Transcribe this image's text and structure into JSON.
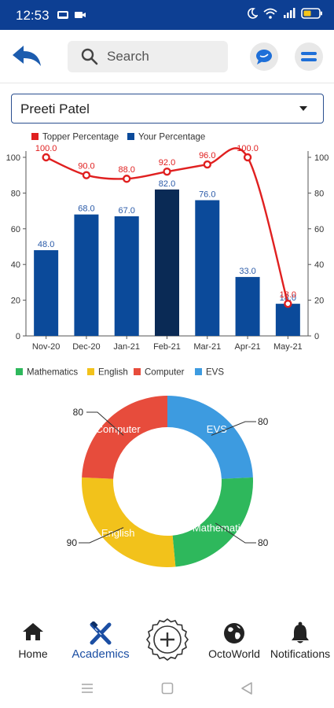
{
  "status_bar": {
    "time": "12:53"
  },
  "header": {
    "search_placeholder": "Search"
  },
  "student_select": {
    "value": "Preeti Patel"
  },
  "chart_data": {
    "type": "bar+line",
    "categories": [
      "Nov-20",
      "Dec-20",
      "Jan-21",
      "Feb-21",
      "Mar-21",
      "Apr-21",
      "May-21"
    ],
    "series": [
      {
        "name": "Topper Percentage",
        "type": "line",
        "color": "#e02020",
        "values": [
          100.0,
          90.0,
          88.0,
          92.0,
          96.0,
          100.0,
          18.0
        ]
      },
      {
        "name": "Your Percentage",
        "type": "bar",
        "color": "#0b4a9a",
        "highlight_color": "#0a2a55",
        "highlight_index": 3,
        "values": [
          48.0,
          68.0,
          67.0,
          82.0,
          76.0,
          33.0,
          18.0
        ]
      }
    ],
    "ylim": [
      0,
      100
    ],
    "yticks": [
      0,
      20,
      40,
      60,
      80,
      100
    ],
    "grid": false,
    "legend": "top"
  },
  "donut_chart": {
    "type": "pie",
    "legend": [
      {
        "label": "Mathematics",
        "color": "#2eb85c"
      },
      {
        "label": "English",
        "color": "#f2c21b"
      },
      {
        "label": "Computer",
        "color": "#e74c3c"
      },
      {
        "label": "EVS",
        "color": "#3d9be0"
      }
    ],
    "slices": [
      {
        "label": "EVS",
        "value": 80,
        "color": "#3d9be0"
      },
      {
        "label": "Mathematics",
        "value": 80,
        "color": "#2eb85c"
      },
      {
        "label": "English",
        "value": 90,
        "color": "#f2c21b"
      },
      {
        "label": "Computer",
        "value": 80,
        "color": "#e74c3c"
      }
    ]
  },
  "bottom_nav": {
    "items": [
      {
        "label": "Home",
        "icon": "home-icon"
      },
      {
        "label": "Academics",
        "icon": "academics-icon",
        "active": true
      },
      {
        "label": "",
        "icon": "add-badge-icon"
      },
      {
        "label": "OctoWorld",
        "icon": "globe-icon"
      },
      {
        "label": "Notifications",
        "icon": "bell-icon"
      }
    ]
  }
}
